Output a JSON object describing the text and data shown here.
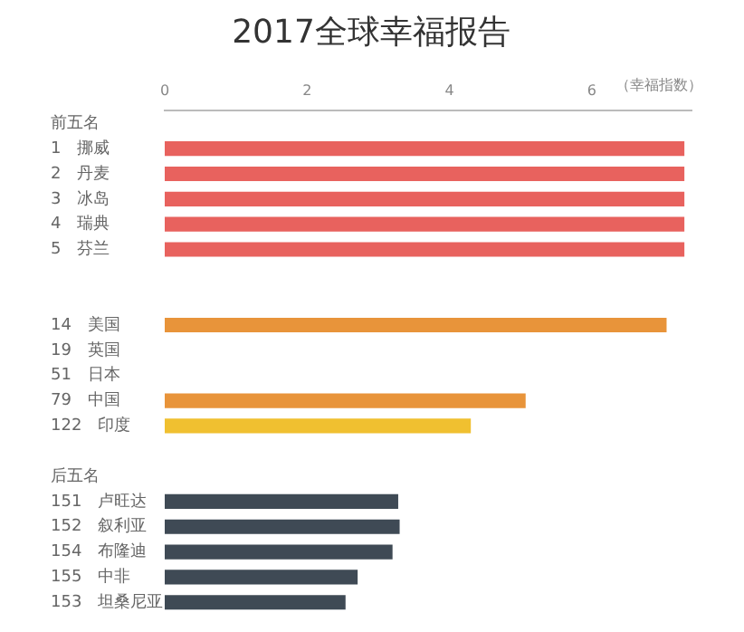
{
  "chart_data": {
    "type": "bar",
    "orientation": "horizontal",
    "title": "2017全球幸福报告",
    "xlabel": "（幸福指数）",
    "categories": [
      "前五名",
      "1　挪威",
      "2　丹麦",
      "3　冰岛",
      "4　瑞典",
      "5　芬兰",
      null,
      null,
      "14　美国",
      "19　英国",
      "51　日本",
      "79　中国",
      "122　印度",
      null,
      "后五名",
      "151　卢旺达",
      "152　叙利亚",
      "154　布隆迪",
      "155　中非",
      "153　坦桑尼亚"
    ],
    "values": [
      null,
      7.3,
      7.3,
      7.3,
      7.3,
      7.3,
      null,
      null,
      7.05,
      null,
      null,
      5.07,
      4.3,
      null,
      null,
      3.28,
      3.3,
      3.2,
      2.71,
      2.54
    ],
    "colors": [
      "#e8625e",
      "#e8625e",
      "#e8625e",
      "#e8625e",
      "#e8625e",
      "#e8625e",
      "#e8943a",
      "#e8943a",
      "#e8943a",
      "#e8943a",
      "#e8943a",
      "#e8943a",
      "#f0c030",
      "#3f4a55",
      "#3f4a55",
      "#3f4a55",
      "#3f4a55",
      "#3f4a55",
      "#3f4a55",
      "#3f4a55"
    ],
    "xlim": [
      0,
      7.4
    ],
    "xticks": [
      0,
      2,
      4,
      6
    ],
    "grid": false,
    "legend": false
  }
}
